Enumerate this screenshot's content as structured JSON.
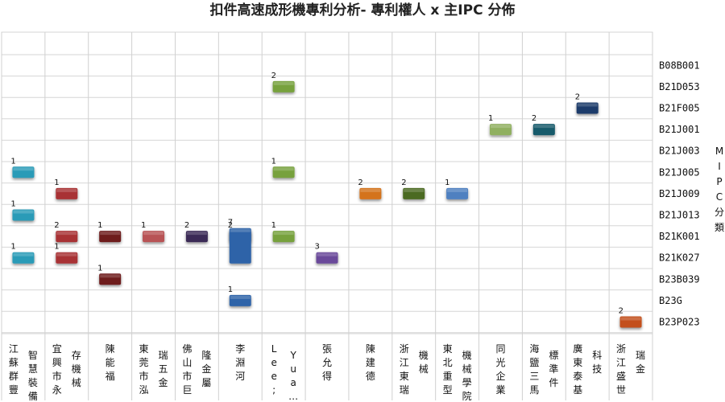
{
  "chart_data": {
    "type": "scatter",
    "title": "扣件高速成形機專利分析- 專利權人 x 主IPC 分佈",
    "ylabel": "MIPC分類",
    "grid": true,
    "categories_x": [
      [
        "江蘇群豐",
        "智慧裝備"
      ],
      [
        "宜興市永",
        "存機械"
      ],
      [
        "陳能福"
      ],
      [
        "東莞市泓",
        "瑞五金"
      ],
      [
        "佛山市巨",
        "隆金屬"
      ],
      [
        "李淵河"
      ],
      [
        "Lee;",
        "Yua…"
      ],
      [
        "張允得"
      ],
      [
        "陳建德"
      ],
      [
        "浙江東瑞",
        "機械"
      ],
      [
        "東北重型",
        "機械學院"
      ],
      [
        "同光企業"
      ],
      [
        "海鹽三馬",
        "標準件"
      ],
      [
        "廣東泰基",
        "科技"
      ],
      [
        "浙江盛世",
        "瑞金"
      ]
    ],
    "categories_y": [
      "B08B001",
      "B21D053",
      "B21F005",
      "B21J001",
      "B21J003",
      "B21J005",
      "B21J009",
      "B21J013",
      "B21K001",
      "B21K027",
      "B23B039",
      "B23G",
      "B23P023"
    ],
    "series": [
      {
        "x": 0,
        "points": [
          {
            "y": "B21J005",
            "value": 1
          },
          {
            "y": "B21J013",
            "value": 1
          },
          {
            "y": "B21K027",
            "value": 1
          }
        ],
        "color": "#2a9bb7"
      },
      {
        "x": 1,
        "points": [
          {
            "y": "B21J009",
            "value": 1
          },
          {
            "y": "B21K001",
            "value": 2
          },
          {
            "y": "B21K027",
            "value": 1
          }
        ],
        "color": "#a83236"
      },
      {
        "x": 2,
        "points": [
          {
            "y": "B21K001",
            "value": 1
          },
          {
            "y": "B23B039",
            "value": 1
          }
        ],
        "color": "#6e1a1f"
      },
      {
        "x": 3,
        "points": [
          {
            "y": "B21K001",
            "value": 1
          }
        ],
        "color": "#b85354"
      },
      {
        "x": 4,
        "points": [
          {
            "y": "B21K001",
            "value": 2
          }
        ],
        "color": "#3a2a56"
      },
      {
        "x": 5,
        "points": [
          {
            "y": "B21K001",
            "value": 2
          },
          {
            "y": "B21K027",
            "value": 7
          },
          {
            "y": "B23G",
            "value": 1
          }
        ],
        "color": "#2e64a8"
      },
      {
        "x": 6,
        "points": [
          {
            "y": "B21D053",
            "value": 2
          },
          {
            "y": "B21J005",
            "value": 1
          },
          {
            "y": "B21K001",
            "value": 1
          }
        ],
        "color": "#77a13c"
      },
      {
        "x": 7,
        "points": [
          {
            "y": "B21K027",
            "value": 3
          }
        ],
        "color": "#6a4a9a"
      },
      {
        "x": 8,
        "points": [
          {
            "y": "B21J009",
            "value": 2
          }
        ],
        "color": "#d4731f"
      },
      {
        "x": 9,
        "points": [
          {
            "y": "B21J009",
            "value": 2
          }
        ],
        "color": "#4c6a23"
      },
      {
        "x": 10,
        "points": [
          {
            "y": "B21J009",
            "value": 1
          }
        ],
        "color": "#4f80c0"
      },
      {
        "x": 11,
        "points": [
          {
            "y": "B21J001",
            "value": 1
          }
        ],
        "color": "#90b060"
      },
      {
        "x": 12,
        "points": [
          {
            "y": "B21J001",
            "value": 2
          }
        ],
        "color": "#155a6a"
      },
      {
        "x": 13,
        "points": [
          {
            "y": "B21F005",
            "value": 2
          }
        ],
        "color": "#1d3a6a"
      },
      {
        "x": 14,
        "points": [
          {
            "y": "B23P023",
            "value": 2
          }
        ],
        "color": "#c3501a"
      }
    ]
  }
}
